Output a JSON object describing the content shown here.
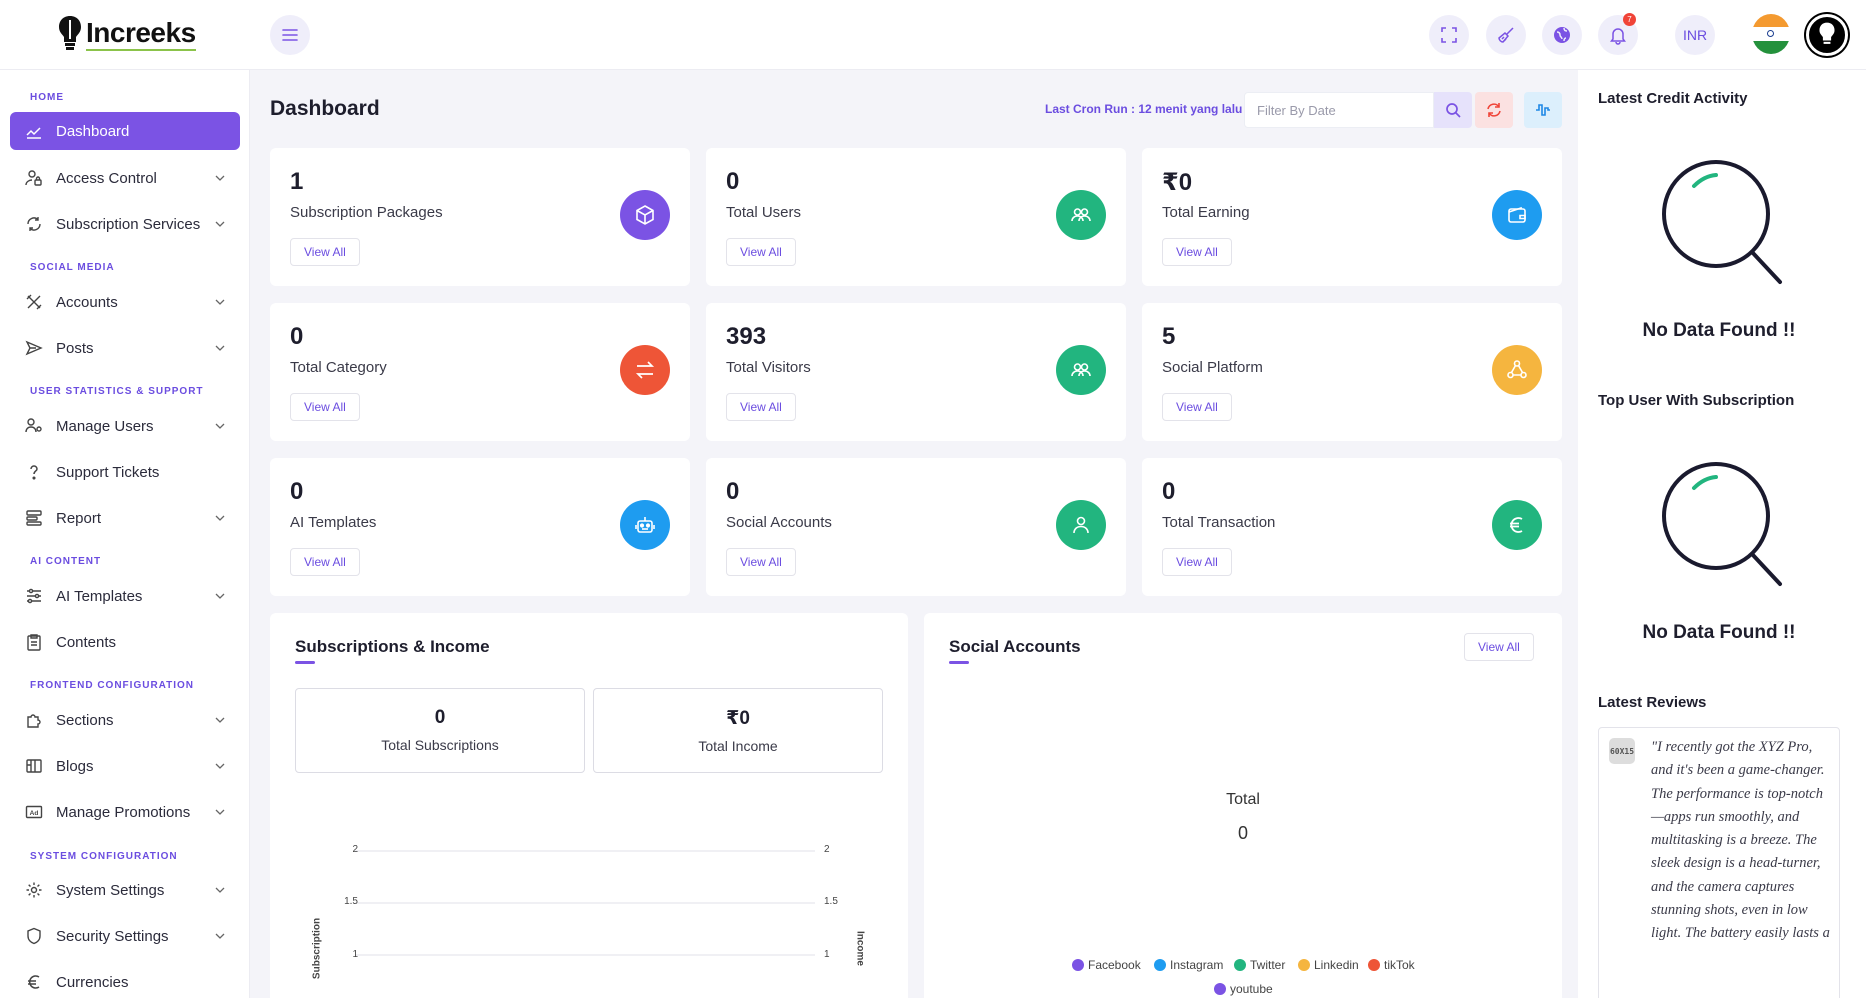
{
  "header": {
    "logo_text": "Increeks",
    "currency": "INR",
    "notification_count": "7"
  },
  "sidebar": {
    "sections": {
      "home": "HOME",
      "social": "SOCIAL MEDIA",
      "user_stats": "USER STATISTICS & SUPPORT",
      "ai": "AI CONTENT",
      "frontend": "FRONTEND CONFIGURATION",
      "system": "SYSTEM CONFIGURATION"
    },
    "items": {
      "dashboard": "Dashboard",
      "access_control": "Access Control",
      "subscription_services": "Subscription Services",
      "accounts": "Accounts",
      "posts": "Posts",
      "manage_users": "Manage Users",
      "support_tickets": "Support Tickets",
      "report": "Report",
      "ai_templates": "AI Templates",
      "contents": "Contents",
      "sections": "Sections",
      "blogs": "Blogs",
      "manage_promotions": "Manage Promotions",
      "system_settings": "System Settings",
      "security_settings": "Security Settings",
      "currencies": "Currencies"
    }
  },
  "main": {
    "title": "Dashboard",
    "cron": "Last Cron Run : 12 menit yang lalu",
    "filter_placeholder": "Filter By Date",
    "view_all": "View All",
    "stats": [
      {
        "value": "1",
        "label": "Subscription Packages"
      },
      {
        "value": "0",
        "label": "Total Users"
      },
      {
        "value": "₹0",
        "label": "Total Earning"
      },
      {
        "value": "0",
        "label": "Total Category"
      },
      {
        "value": "393",
        "label": "Total Visitors"
      },
      {
        "value": "5",
        "label": "Social Platform"
      },
      {
        "value": "0",
        "label": "AI Templates"
      },
      {
        "value": "0",
        "label": "Social Accounts"
      },
      {
        "value": "0",
        "label": "Total Transaction"
      }
    ],
    "subscriptions_income": {
      "title": "Subscriptions & Income",
      "total_subscriptions_value": "0",
      "total_subscriptions_label": "Total Subscriptions",
      "total_income_value": "₹0",
      "total_income_label": "Total Income"
    },
    "social_accounts": {
      "title": "Social Accounts",
      "view_all": "View All",
      "total_label": "Total",
      "total_value": "0"
    }
  },
  "chart_data": [
    {
      "type": "line",
      "ylabel": "Subscription",
      "y2label": "Income",
      "yticks": [
        "2",
        "1.5",
        "1"
      ],
      "y2ticks": [
        "2",
        "1.5",
        "1"
      ],
      "series": []
    },
    {
      "type": "pie",
      "center_label": "Total",
      "center_value": "0",
      "legend": [
        {
          "name": "Facebook",
          "color": "#7b53e4"
        },
        {
          "name": "Instagram",
          "color": "#1e9cf0"
        },
        {
          "name": "Twitter",
          "color": "#22b57f"
        },
        {
          "name": "Linkedin",
          "color": "#f5b53f"
        },
        {
          "name": "tikTok",
          "color": "#ee5537"
        },
        {
          "name": "youtube",
          "color": "#7b53e4"
        }
      ],
      "values": []
    }
  ],
  "right": {
    "credit_title": "Latest Credit Activity",
    "no_data": "No Data Found !!",
    "top_user_title": "Top User With Subscription",
    "reviews_title": "Latest Reviews",
    "review_thumb": "60X15",
    "review_text": "\"I recently got the XYZ Pro, and it's been a game-changer. The performance is top-notch—apps run smoothly, and multitasking is a breeze. The sleek design is a head-turner, and the camera captures stunning shots, even in low light. The battery easily lasts a"
  }
}
